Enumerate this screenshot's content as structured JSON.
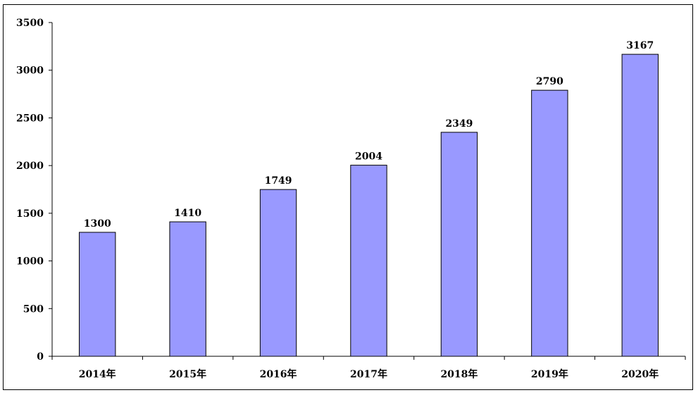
{
  "chart_data": {
    "type": "bar",
    "categories": [
      "2014年",
      "2015年",
      "2016年",
      "2017年",
      "2018年",
      "2019年",
      "2020年"
    ],
    "values": [
      1300,
      1410,
      1749,
      2004,
      2349,
      2790,
      3167
    ],
    "data_labels": [
      "1300",
      "1410",
      "1749",
      "2004",
      "2349",
      "2790",
      "3167"
    ],
    "title": "",
    "xlabel": "",
    "ylabel": "",
    "ylim": [
      0,
      3500
    ],
    "yticks": [
      0,
      500,
      1000,
      1500,
      2000,
      2500,
      3000,
      3500
    ],
    "grid": false,
    "legend": "none",
    "bar_color": "#9999ff",
    "bar_edge_color": "#000000"
  }
}
